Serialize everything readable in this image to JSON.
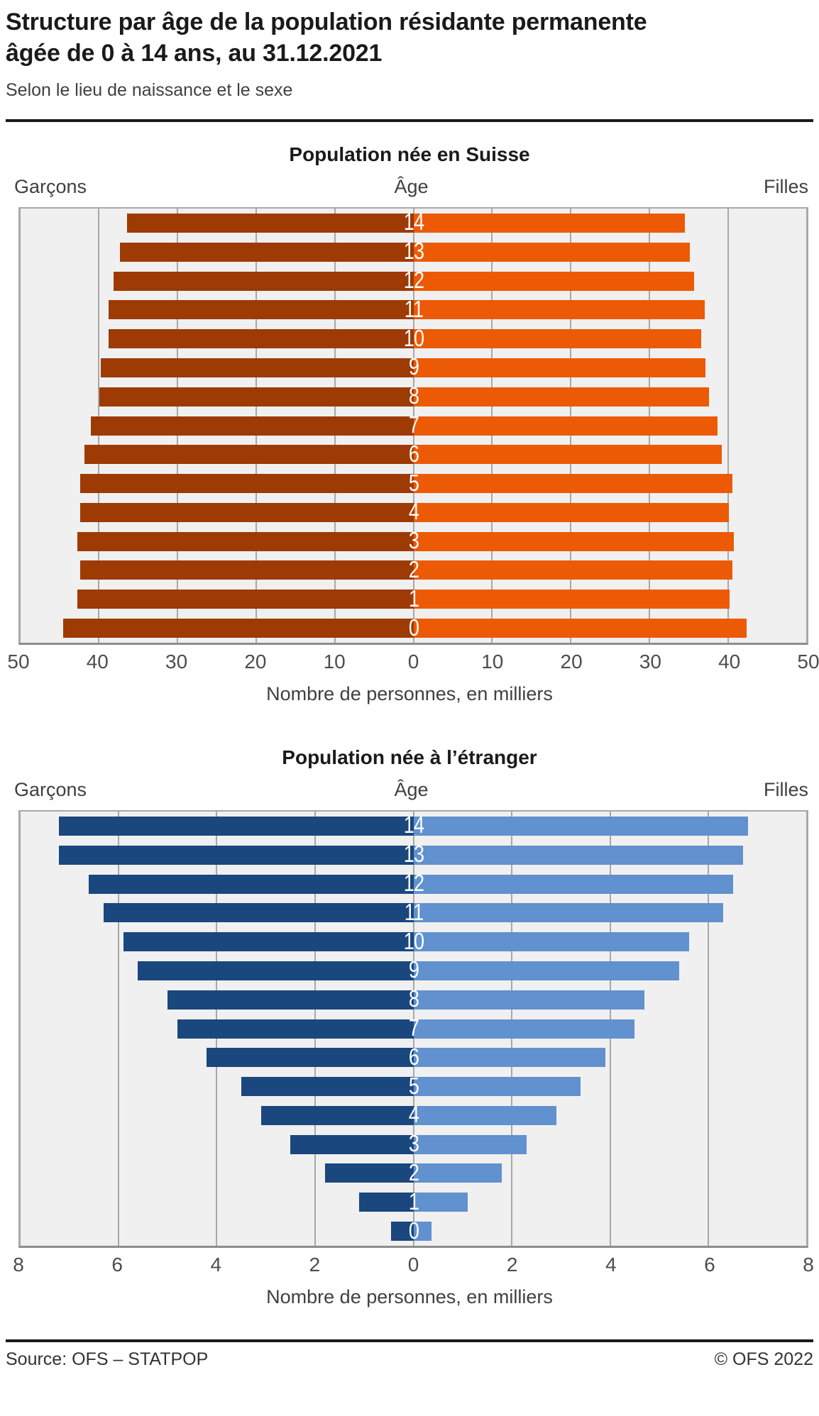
{
  "header": {
    "title_line1": "Structure par âge de la population résidante permanente",
    "title_line2": "âgée de 0 à 14 ans, au 31.12.2021",
    "subtitle": "Selon le lieu de naissance et le sexe"
  },
  "colors": {
    "boys_swiss": "#9e3a03",
    "girls_swiss": "#ec5a05",
    "boys_foreign": "#1a477d",
    "girls_foreign": "#6191ce",
    "plot_background": "#f0f0f0",
    "gridline": "#a8a8a8"
  },
  "chart_data": [
    {
      "type": "bar",
      "variant": "population-pyramid",
      "title": "Population née en Suisse",
      "left_label": "Garçons",
      "center_label": "Âge",
      "right_label": "Filles",
      "xlabel": "Nombre de personnes, en milliers",
      "unit": "milliers",
      "axis_max": 50,
      "tick_labels": [
        "50",
        "40",
        "30",
        "20",
        "10",
        "0",
        "10",
        "20",
        "30",
        "40",
        "50"
      ],
      "ages": [
        14,
        13,
        12,
        11,
        10,
        9,
        8,
        7,
        6,
        5,
        4,
        3,
        2,
        1,
        0
      ],
      "series": [
        {
          "name": "Garçons",
          "side": "left",
          "color": "#9e3a03",
          "values": [
            36.4,
            37.3,
            38.1,
            38.7,
            38.7,
            39.7,
            39.9,
            41.0,
            41.8,
            42.3,
            42.3,
            42.7,
            42.3,
            42.7,
            44.5
          ]
        },
        {
          "name": "Filles",
          "side": "right",
          "color": "#ec5a05",
          "values": [
            34.5,
            35.1,
            35.7,
            37.0,
            36.6,
            37.1,
            37.6,
            38.6,
            39.2,
            40.5,
            40.1,
            40.7,
            40.5,
            40.2,
            42.3
          ]
        }
      ]
    },
    {
      "type": "bar",
      "variant": "population-pyramid",
      "title": "Population née à l’étranger",
      "left_label": "Garçons",
      "center_label": "Âge",
      "right_label": "Filles",
      "xlabel": "Nombre de personnes, en milliers",
      "unit": "milliers",
      "axis_max": 8,
      "tick_labels": [
        "8",
        "6",
        "4",
        "2",
        "0",
        "2",
        "4",
        "6",
        "8"
      ],
      "ages": [
        14,
        13,
        12,
        11,
        10,
        9,
        8,
        7,
        6,
        5,
        4,
        3,
        2,
        1,
        0
      ],
      "series": [
        {
          "name": "Garçons",
          "side": "left",
          "color": "#1a477d",
          "values": [
            7.2,
            7.2,
            6.6,
            6.3,
            5.9,
            5.6,
            5.0,
            4.8,
            4.2,
            3.5,
            3.1,
            2.5,
            1.8,
            1.1,
            0.45
          ]
        },
        {
          "name": "Filles",
          "side": "right",
          "color": "#6191ce",
          "values": [
            6.8,
            6.7,
            6.5,
            6.3,
            5.6,
            5.4,
            4.7,
            4.5,
            3.9,
            3.4,
            2.9,
            2.3,
            1.8,
            1.1,
            0.37
          ]
        }
      ]
    }
  ],
  "footer": {
    "source": "Source: OFS – STATPOP",
    "copyright": "© OFS 2022"
  }
}
